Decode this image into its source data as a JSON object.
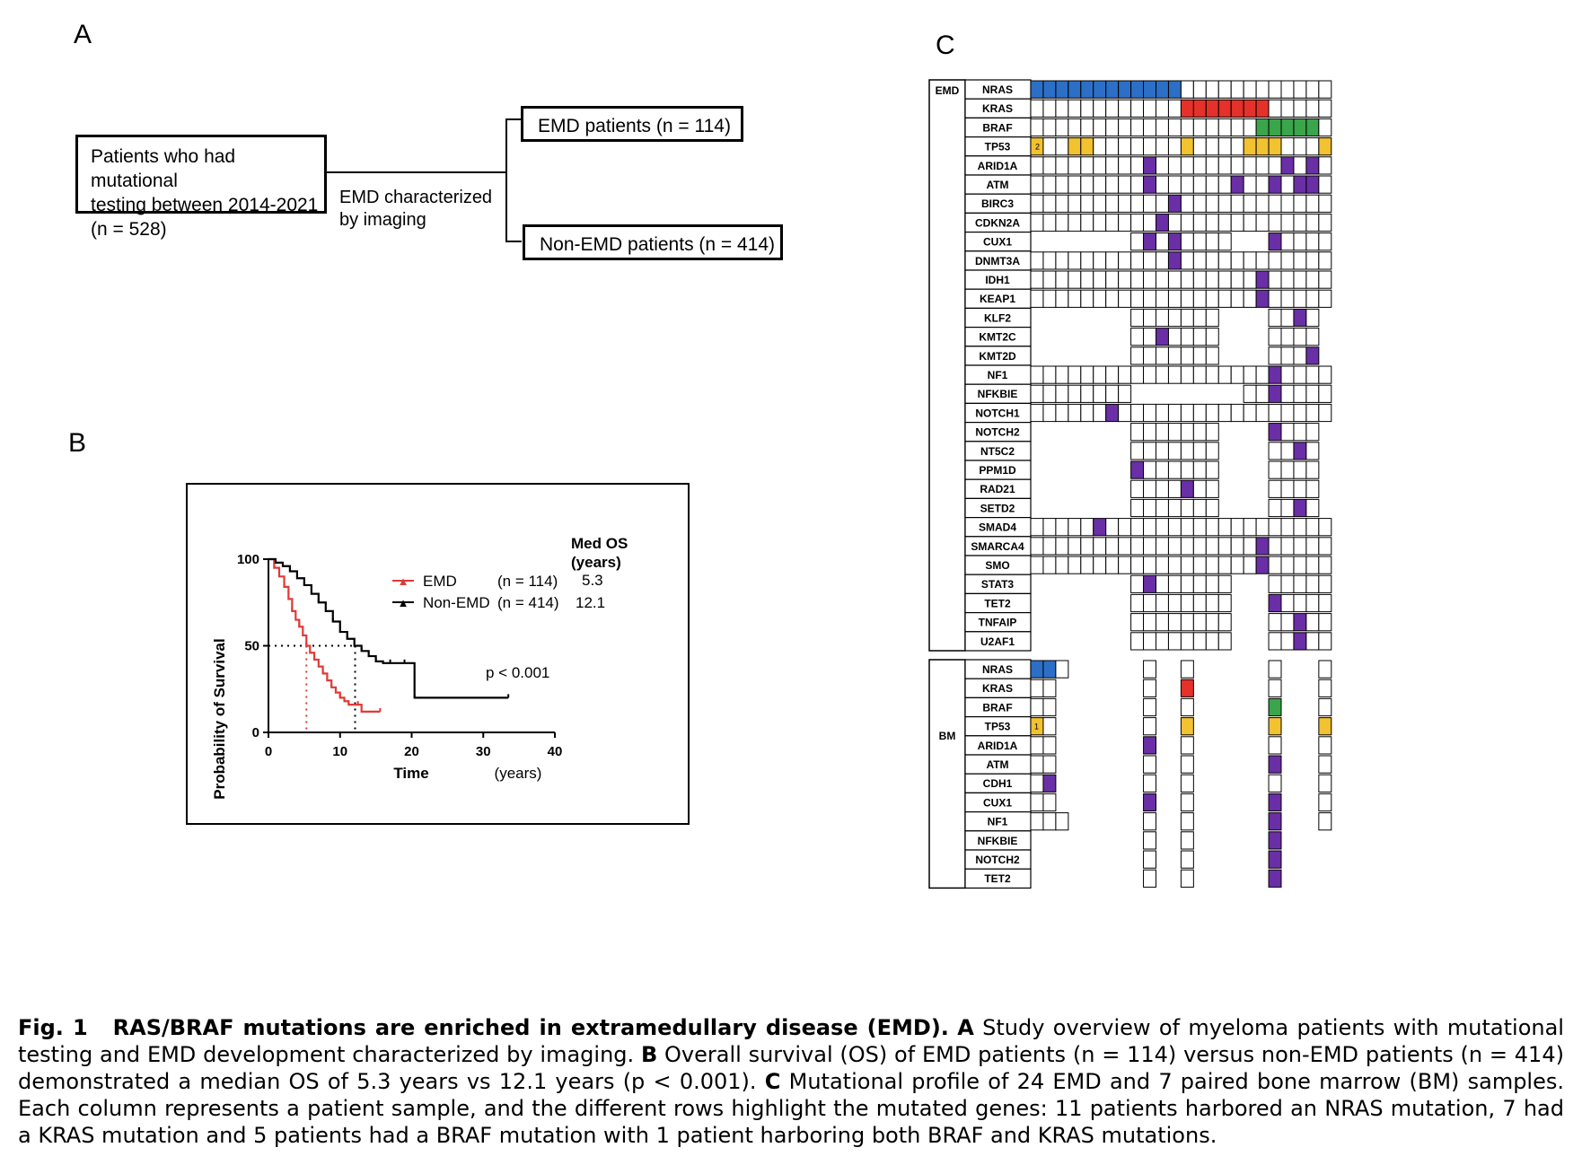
{
  "panel_a": {
    "letter": "A",
    "start_box": "Patients who had mutational testing between 2014-2021 (n = 528)",
    "start_lines": [
      "Patients who had mutational",
      "testing between 2014-2021",
      "(n = 528)"
    ],
    "split_label_lines": [
      "EMD characterized",
      "by imaging"
    ],
    "emd_box": "EMD patients (n = 114)",
    "non_emd_box": "Non-EMD patients (n = 414)"
  },
  "panel_b": {
    "letter": "B",
    "ylabel": "Probability of Survival",
    "xlabel": "Time",
    "xunit": "(years)",
    "med_os_header": [
      "Med OS",
      "(years)"
    ],
    "legend": [
      {
        "name": "EMD",
        "n": "(n = 114)",
        "med": "5.3",
        "color": "#e03a36"
      },
      {
        "name": "Non-EMD",
        "n": "(n = 414)",
        "med": "12.1",
        "color": "#000000"
      }
    ],
    "pvalue": "p < 0.001"
  },
  "chart_data": {
    "type": "line",
    "xlabel": "Time",
    "ylabel": "Probability of Survival",
    "xlim": [
      0,
      40
    ],
    "ylim": [
      0,
      100
    ],
    "xticks": [
      0,
      10,
      20,
      30,
      40
    ],
    "yticks": [
      0,
      50,
      100
    ],
    "medians": [
      5.3,
      12.1
    ],
    "median_level": 50,
    "series": [
      {
        "name": "EMD",
        "color": "#e03a36",
        "x": [
          0,
          0.8,
          1.5,
          2.2,
          2.8,
          3.3,
          3.8,
          4.3,
          4.8,
          5.3,
          5.8,
          6.4,
          7.0,
          7.6,
          8.2,
          8.8,
          9.4,
          10.0,
          10.6,
          11.2,
          11.8,
          12.5,
          13.0,
          15.6
        ],
        "y": [
          100,
          95,
          90,
          84,
          77,
          70,
          65,
          61,
          56,
          50,
          46,
          42,
          38,
          34,
          30,
          26,
          23,
          20,
          18,
          16,
          16,
          16,
          12,
          12
        ]
      },
      {
        "name": "Non-EMD",
        "color": "#000000",
        "x": [
          0,
          1,
          2,
          3,
          4,
          5,
          6,
          7,
          8,
          9,
          10,
          11,
          12,
          13,
          14,
          15,
          16,
          17,
          18,
          19,
          20.4,
          20.4,
          27,
          33.5
        ],
        "y": [
          100,
          98,
          96,
          93,
          89,
          85,
          80,
          75,
          70,
          64,
          58,
          54,
          50,
          47,
          44,
          41,
          40,
          40,
          40,
          40,
          40,
          20,
          20,
          20
        ]
      }
    ]
  },
  "panel_c": {
    "letter": "C",
    "emd_label": "EMD",
    "bm_label": "BM",
    "colors": {
      "NRAS": "#2c6fc7",
      "KRAS": "#e5312a",
      "BRAF": "#3aa54a",
      "TP53": "#f2c230",
      "other": "#6a2fa6"
    },
    "emd_genes": [
      "NRAS",
      "KRAS",
      "BRAF",
      "TP53",
      "ARID1A",
      "ATM",
      "BIRC3",
      "CDKN2A",
      "CUX1",
      "DNMT3A",
      "IDH1",
      "KEAP1",
      "KLF2",
      "KMT2C",
      "KMT2D",
      "NF1",
      "NFKBIE",
      "NOTCH1",
      "NOTCH2",
      "NT5C2",
      "PPM1D",
      "RAD21",
      "SETD2",
      "SMAD4",
      "SMARCA4",
      "SMO",
      "STAT3",
      "TET2",
      "TNFAIP",
      "U2AF1"
    ],
    "bm_genes": [
      "NRAS",
      "KRAS",
      "BRAF",
      "TP53",
      "ARID1A",
      "ATM",
      "CDH1",
      "CUX1",
      "NF1",
      "NFKBIE",
      "NOTCH2",
      "TET2"
    ],
    "emd_tp53_note": "2",
    "bm_tp53_note": "1"
  },
  "caption": {
    "label": "Fig. 1",
    "title": "RAS/BRAF mutations are enriched in extramedullary disease (EMD).",
    "text_a_label": "A",
    "text_a": "Study overview of myeloma patients with mutational testing and EMD development characterized by imaging.",
    "text_b_label": "B",
    "text_b": "Overall survival (OS) of EMD patients (n = 114) versus non-EMD patients (n = 414) demonstrated a median OS of 5.3 years vs 12.1 years (p < 0.001).",
    "text_c_label": "C",
    "text_c": "Mutational profile of 24 EMD and 7 paired bone marrow (BM) samples. Each column represents a patient sample, and the different rows highlight the mutated genes: 11 patients harbored an NRAS mutation, 7 had a KRAS mutation and 5 patients had a BRAF mutation with 1 patient harboring both BRAF and KRAS mutations."
  }
}
